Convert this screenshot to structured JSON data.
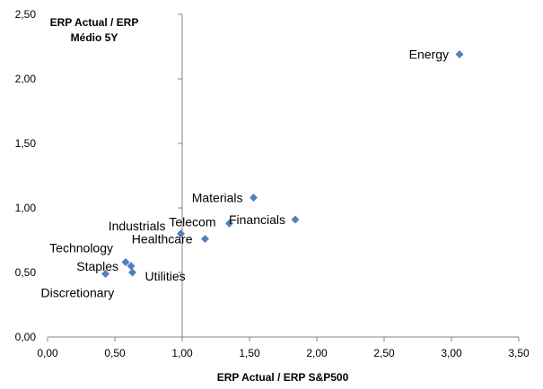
{
  "chart_data": {
    "type": "scatter",
    "title": "",
    "xlabel": "ERP Actual / ERP S&P500",
    "ylabel_lines": [
      "ERP Actual / ERP",
      "Médio 5Y"
    ],
    "xlim": [
      0,
      3.5
    ],
    "ylim": [
      0,
      2.5
    ],
    "xticks": [
      "0,00",
      "0,50",
      "1,00",
      "1,50",
      "2,00",
      "2,50",
      "3,00",
      "3,50"
    ],
    "yticks": [
      "0,00",
      "0,50",
      "1,00",
      "1,50",
      "2,00",
      "2,50"
    ],
    "y_axis_crosses_x_at": 1.0,
    "grid": false,
    "legend": "none",
    "marker_color": "#4f81bd",
    "points": [
      {
        "label": "Energy",
        "x": 3.06,
        "y": 2.19
      },
      {
        "label": "Materials",
        "x": 1.53,
        "y": 1.08
      },
      {
        "label": "Financials",
        "x": 1.84,
        "y": 0.91
      },
      {
        "label": "Telecom",
        "x": 1.35,
        "y": 0.88
      },
      {
        "label": "Industrials",
        "x": 0.99,
        "y": 0.8
      },
      {
        "label": "Healthcare",
        "x": 1.17,
        "y": 0.76
      },
      {
        "label": "Technology",
        "x": 0.58,
        "y": 0.58
      },
      {
        "label": "Staples",
        "x": 0.62,
        "y": 0.55
      },
      {
        "label": "Utilities",
        "x": 0.63,
        "y": 0.5
      },
      {
        "label": "Discretionary",
        "x": 0.43,
        "y": 0.49
      }
    ]
  }
}
